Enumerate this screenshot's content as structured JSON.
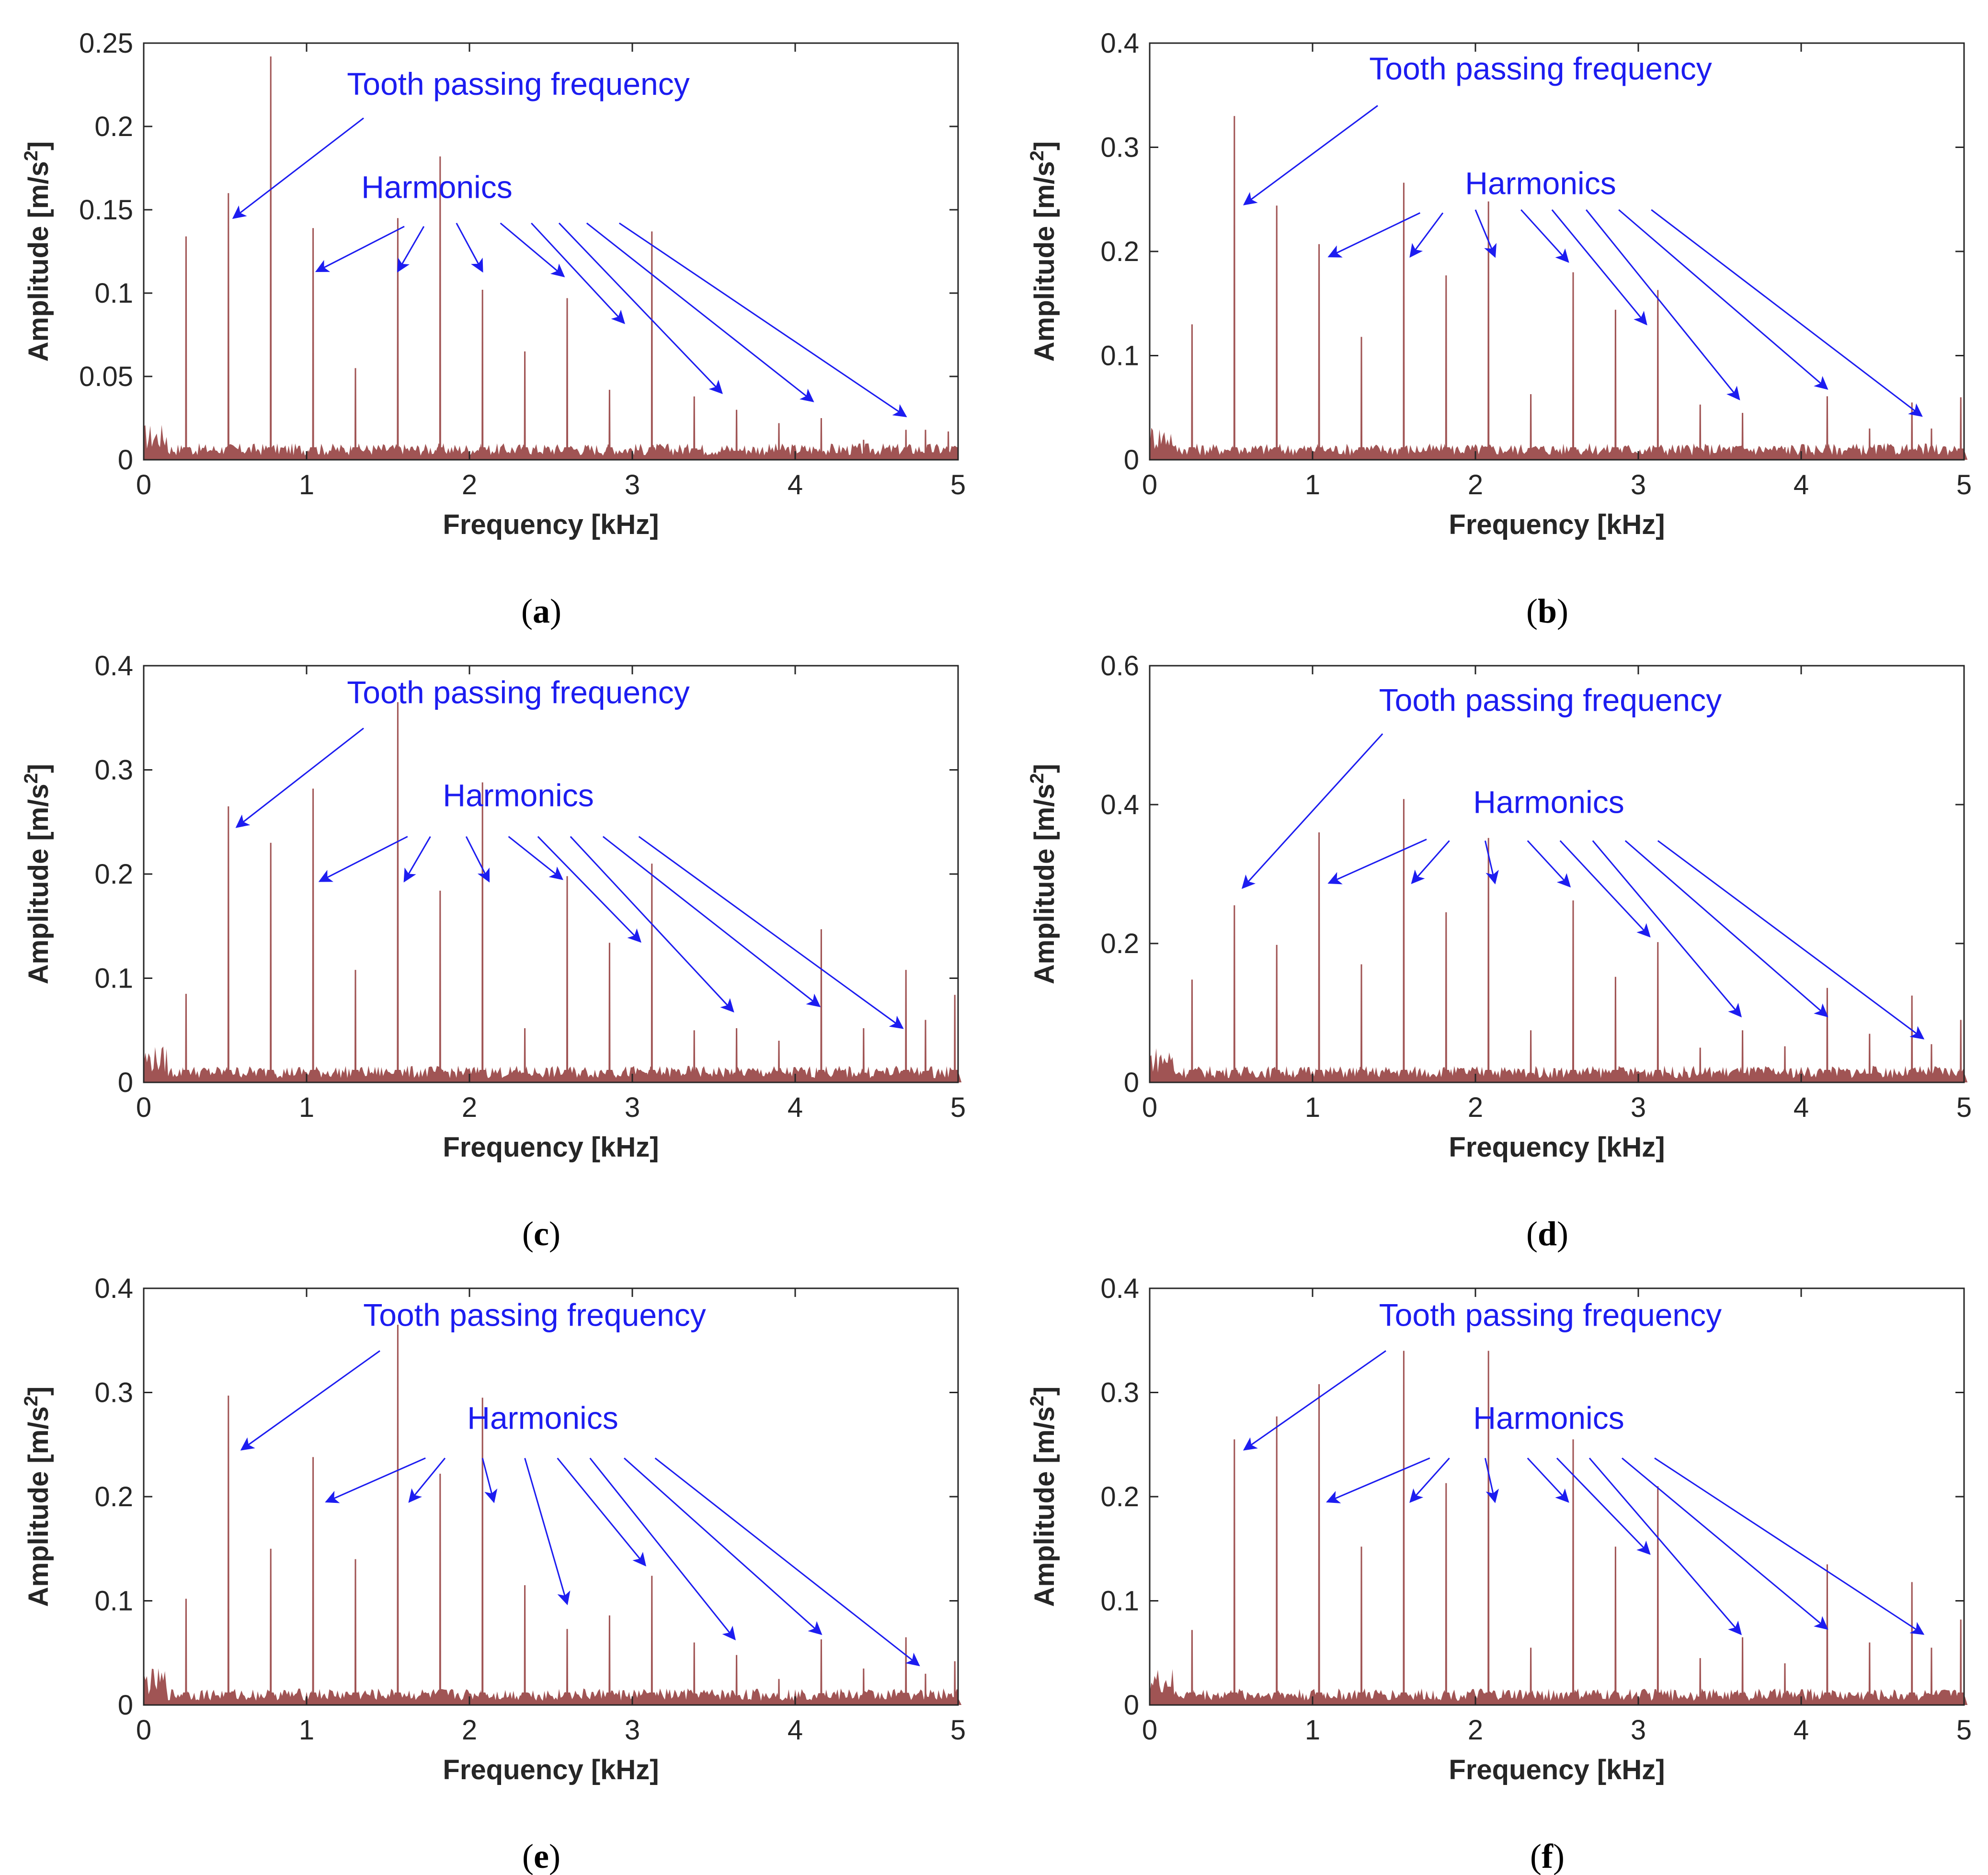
{
  "chart_data": [
    {
      "id": "a",
      "type": "bar",
      "caption": "a",
      "xlabel": "Frequency [kHz]",
      "ylabel": "Amplitude [m/s",
      "ylabel_sup": "2",
      "ylabel_tail": "]",
      "xlim": [
        0,
        5
      ],
      "ylim": [
        0,
        0.25
      ],
      "xticks": [
        "0",
        "1",
        "2",
        "3",
        "4",
        "5"
      ],
      "yticks": [
        "0",
        "0.05",
        "0.1",
        "0.15",
        "0.2",
        "0.25"
      ],
      "grid": false,
      "bar_color": "#a05454",
      "annotation_color": "#1c1cf0",
      "x": [
        0.26,
        0.52,
        0.78,
        1.04,
        1.3,
        1.56,
        1.82,
        2.08,
        2.34,
        2.6,
        2.86,
        3.12,
        3.38,
        3.64,
        3.9,
        4.16,
        4.42,
        4.68,
        4.8,
        4.94
      ],
      "values": [
        0.134,
        0.16,
        0.242,
        0.139,
        0.055,
        0.145,
        0.182,
        0.102,
        0.065,
        0.097,
        0.042,
        0.137,
        0.038,
        0.03,
        0.022,
        0.025,
        0.012,
        0.018,
        0.018,
        0.017
      ],
      "annotations": {
        "tooth": {
          "text": "Tooth passing frequency",
          "x": 2.3,
          "y": 0.219,
          "from": [
            1.35,
            0.205
          ],
          "to": [
            0.55,
            0.145
          ]
        },
        "harmonics": {
          "text": "Harmonics",
          "x": 1.8,
          "y": 0.157
        },
        "harmonic_arrows": [
          {
            "from": [
              1.6,
              0.14
            ],
            "to": [
              1.06,
              0.113
            ]
          },
          {
            "from": [
              1.72,
              0.14
            ],
            "to": [
              1.56,
              0.113
            ]
          },
          {
            "from": [
              1.92,
              0.142
            ],
            "to": [
              2.08,
              0.113
            ]
          },
          {
            "from": [
              2.19,
              0.142
            ],
            "to": [
              2.58,
              0.11
            ]
          },
          {
            "from": [
              2.38,
              0.142
            ],
            "to": [
              2.95,
              0.082
            ]
          },
          {
            "from": [
              2.55,
              0.142
            ],
            "to": [
              3.55,
              0.04
            ]
          },
          {
            "from": [
              2.72,
              0.142
            ],
            "to": [
              4.11,
              0.035
            ]
          },
          {
            "from": [
              2.92,
              0.142
            ],
            "to": [
              4.68,
              0.026
            ]
          }
        ]
      }
    },
    {
      "id": "b",
      "type": "bar",
      "caption": "b",
      "xlabel": "Frequency [kHz]",
      "ylabel": "Amplitude [m/s",
      "ylabel_sup": "2",
      "ylabel_tail": "]",
      "xlim": [
        0,
        5
      ],
      "ylim": [
        0,
        0.4
      ],
      "xticks": [
        "0",
        "1",
        "2",
        "3",
        "4",
        "5"
      ],
      "yticks": [
        "0",
        "0.1",
        "0.2",
        "0.3",
        "0.4"
      ],
      "grid": false,
      "bar_color": "#a05454",
      "annotation_color": "#1c1cf0",
      "x": [
        0.26,
        0.52,
        0.78,
        1.04,
        1.3,
        1.56,
        1.82,
        2.08,
        2.34,
        2.6,
        2.86,
        3.12,
        3.38,
        3.64,
        3.9,
        4.16,
        4.42,
        4.68,
        4.8,
        4.98
      ],
      "values": [
        0.13,
        0.33,
        0.244,
        0.207,
        0.118,
        0.266,
        0.177,
        0.248,
        0.063,
        0.18,
        0.144,
        0.163,
        0.053,
        0.045,
        0.012,
        0.061,
        0.03,
        0.055,
        0.03,
        0.06
      ],
      "annotations": {
        "tooth": {
          "text": "Tooth passing frequency",
          "x": 2.4,
          "y": 0.365,
          "from": [
            1.4,
            0.34
          ],
          "to": [
            0.58,
            0.245
          ]
        },
        "harmonics": {
          "text": "Harmonics",
          "x": 2.4,
          "y": 0.255
        },
        "harmonic_arrows": [
          {
            "from": [
              1.66,
              0.237
            ],
            "to": [
              1.1,
              0.195
            ]
          },
          {
            "from": [
              1.8,
              0.237
            ],
            "to": [
              1.6,
              0.195
            ]
          },
          {
            "from": [
              2.0,
              0.24
            ],
            "to": [
              2.12,
              0.195
            ]
          },
          {
            "from": [
              2.28,
              0.24
            ],
            "to": [
              2.57,
              0.19
            ]
          },
          {
            "from": [
              2.47,
              0.24
            ],
            "to": [
              3.05,
              0.13
            ]
          },
          {
            "from": [
              2.68,
              0.24
            ],
            "to": [
              3.62,
              0.058
            ]
          },
          {
            "from": [
              2.88,
              0.24
            ],
            "to": [
              4.16,
              0.068
            ]
          },
          {
            "from": [
              3.08,
              0.24
            ],
            "to": [
              4.74,
              0.042
            ]
          }
        ]
      }
    },
    {
      "id": "c",
      "type": "bar",
      "caption": "c",
      "xlabel": "Frequency [kHz]",
      "ylabel": "Amplitude [m/s",
      "ylabel_sup": "2",
      "ylabel_tail": "]",
      "xlim": [
        0,
        5
      ],
      "ylim": [
        0,
        0.4
      ],
      "xticks": [
        "0",
        "1",
        "2",
        "3",
        "4",
        "5"
      ],
      "yticks": [
        "0",
        "0.1",
        "0.2",
        "0.3",
        "0.4"
      ],
      "grid": false,
      "bar_color": "#a05454",
      "annotation_color": "#1c1cf0",
      "x": [
        0.26,
        0.52,
        0.78,
        1.04,
        1.3,
        1.56,
        1.82,
        2.08,
        2.34,
        2.6,
        2.86,
        3.12,
        3.38,
        3.64,
        3.9,
        4.16,
        4.42,
        4.68,
        4.8,
        4.98
      ],
      "values": [
        0.085,
        0.265,
        0.23,
        0.282,
        0.108,
        0.365,
        0.184,
        0.288,
        0.052,
        0.198,
        0.134,
        0.21,
        0.05,
        0.052,
        0.04,
        0.147,
        0.052,
        0.108,
        0.06,
        0.084
      ],
      "annotations": {
        "tooth": {
          "text": "Tooth passing frequency",
          "x": 2.3,
          "y": 0.364,
          "from": [
            1.35,
            0.34
          ],
          "to": [
            0.57,
            0.245
          ]
        },
        "harmonics": {
          "text": "Harmonics",
          "x": 2.3,
          "y": 0.265
        },
        "harmonic_arrows": [
          {
            "from": [
              1.62,
              0.236
            ],
            "to": [
              1.08,
              0.193
            ]
          },
          {
            "from": [
              1.76,
              0.236
            ],
            "to": [
              1.6,
              0.193
            ]
          },
          {
            "from": [
              1.98,
              0.236
            ],
            "to": [
              2.12,
              0.193
            ]
          },
          {
            "from": [
              2.24,
              0.236
            ],
            "to": [
              2.57,
              0.195
            ]
          },
          {
            "from": [
              2.42,
              0.236
            ],
            "to": [
              3.05,
              0.135
            ]
          },
          {
            "from": [
              2.62,
              0.236
            ],
            "to": [
              3.62,
              0.068
            ]
          },
          {
            "from": [
              2.82,
              0.236
            ],
            "to": [
              4.15,
              0.073
            ]
          },
          {
            "from": [
              3.04,
              0.236
            ],
            "to": [
              4.66,
              0.052
            ]
          }
        ]
      }
    },
    {
      "id": "d",
      "type": "bar",
      "caption": "d",
      "xlabel": "Frequency [kHz]",
      "ylabel": "Amplitude [m/s",
      "ylabel_sup": "2",
      "ylabel_tail": "]",
      "xlim": [
        0,
        5
      ],
      "ylim": [
        0,
        0.6
      ],
      "xticks": [
        "0",
        "1",
        "2",
        "3",
        "4",
        "5"
      ],
      "yticks": [
        "0",
        "0.2",
        "0.4",
        "0.6"
      ],
      "grid": false,
      "bar_color": "#a05454",
      "annotation_color": "#1c1cf0",
      "x": [
        0.26,
        0.52,
        0.78,
        1.04,
        1.3,
        1.56,
        1.82,
        2.08,
        2.34,
        2.6,
        2.86,
        3.12,
        3.38,
        3.64,
        3.9,
        4.16,
        4.42,
        4.68,
        4.8,
        4.98
      ],
      "values": [
        0.148,
        0.255,
        0.198,
        0.36,
        0.17,
        0.408,
        0.245,
        0.352,
        0.075,
        0.262,
        0.152,
        0.202,
        0.05,
        0.075,
        0.052,
        0.136,
        0.07,
        0.125,
        0.055,
        0.09
      ],
      "annotations": {
        "tooth": {
          "text": "Tooth passing frequency",
          "x": 2.46,
          "y": 0.535,
          "from": [
            1.43,
            0.502
          ],
          "to": [
            0.57,
            0.28
          ]
        },
        "harmonics": {
          "text": "Harmonics",
          "x": 2.45,
          "y": 0.388
        },
        "harmonic_arrows": [
          {
            "from": [
              1.7,
              0.35
            ],
            "to": [
              1.1,
              0.287
            ]
          },
          {
            "from": [
              1.84,
              0.348
            ],
            "to": [
              1.61,
              0.287
            ]
          },
          {
            "from": [
              2.06,
              0.348
            ],
            "to": [
              2.12,
              0.287
            ]
          },
          {
            "from": [
              2.32,
              0.348
            ],
            "to": [
              2.58,
              0.282
            ]
          },
          {
            "from": [
              2.52,
              0.348
            ],
            "to": [
              3.07,
              0.21
            ]
          },
          {
            "from": [
              2.72,
              0.348
            ],
            "to": [
              3.63,
              0.095
            ]
          },
          {
            "from": [
              2.92,
              0.348
            ],
            "to": [
              4.16,
              0.095
            ]
          },
          {
            "from": [
              3.12,
              0.348
            ],
            "to": [
              4.75,
              0.063
            ]
          }
        ]
      }
    },
    {
      "id": "e",
      "type": "bar",
      "caption": "e",
      "xlabel": "Frequency [kHz]",
      "ylabel": "Amplitude [m/s",
      "ylabel_sup": "2",
      "ylabel_tail": "]",
      "xlim": [
        0,
        5
      ],
      "ylim": [
        0,
        0.4
      ],
      "xticks": [
        "0",
        "1",
        "2",
        "3",
        "4",
        "5"
      ],
      "yticks": [
        "0",
        "0.1",
        "0.2",
        "0.3",
        "0.4"
      ],
      "grid": false,
      "bar_color": "#a05454",
      "annotation_color": "#1c1cf0",
      "x": [
        0.26,
        0.52,
        0.78,
        1.04,
        1.3,
        1.56,
        1.82,
        2.08,
        2.34,
        2.6,
        2.86,
        3.12,
        3.38,
        3.64,
        3.9,
        4.16,
        4.42,
        4.68,
        4.8,
        4.98
      ],
      "values": [
        0.102,
        0.297,
        0.15,
        0.238,
        0.14,
        0.365,
        0.222,
        0.295,
        0.115,
        0.073,
        0.086,
        0.124,
        0.06,
        0.048,
        0.025,
        0.063,
        0.035,
        0.065,
        0.03,
        0.042
      ],
      "annotations": {
        "tooth": {
          "text": "Tooth passing frequency",
          "x": 2.4,
          "y": 0.364,
          "from": [
            1.45,
            0.34
          ],
          "to": [
            0.6,
            0.245
          ]
        },
        "harmonics": {
          "text": "Harmonics",
          "x": 2.45,
          "y": 0.265
        },
        "harmonic_arrows": [
          {
            "from": [
              1.73,
              0.237
            ],
            "to": [
              1.12,
              0.195
            ]
          },
          {
            "from": [
              1.85,
              0.237
            ],
            "to": [
              1.63,
              0.195
            ]
          },
          {
            "from": [
              2.08,
              0.237
            ],
            "to": [
              2.15,
              0.195
            ]
          },
          {
            "from": [
              2.34,
              0.237
            ],
            "to": [
              2.6,
              0.097
            ]
          },
          {
            "from": [
              2.54,
              0.237
            ],
            "to": [
              3.08,
              0.134
            ]
          },
          {
            "from": [
              2.74,
              0.237
            ],
            "to": [
              3.63,
              0.063
            ]
          },
          {
            "from": [
              2.95,
              0.237
            ],
            "to": [
              4.16,
              0.068
            ]
          },
          {
            "from": [
              3.14,
              0.237
            ],
            "to": [
              4.76,
              0.038
            ]
          }
        ]
      }
    },
    {
      "id": "f",
      "type": "bar",
      "caption": "f",
      "xlabel": "Frequency [kHz]",
      "ylabel": "Amplitude [m/s",
      "ylabel_sup": "2",
      "ylabel_tail": "]",
      "xlim": [
        0,
        5
      ],
      "ylim": [
        0,
        0.4
      ],
      "xticks": [
        "0",
        "1",
        "2",
        "3",
        "4",
        "5"
      ],
      "yticks": [
        "0",
        "0.1",
        "0.2",
        "0.3",
        "0.4"
      ],
      "grid": false,
      "bar_color": "#a05454",
      "annotation_color": "#1c1cf0",
      "x": [
        0.26,
        0.52,
        0.78,
        1.04,
        1.3,
        1.56,
        1.82,
        2.08,
        2.34,
        2.6,
        2.86,
        3.12,
        3.38,
        3.64,
        3.9,
        4.16,
        4.42,
        4.68,
        4.8,
        4.98
      ],
      "values": [
        0.072,
        0.255,
        0.277,
        0.308,
        0.152,
        0.34,
        0.213,
        0.34,
        0.055,
        0.255,
        0.152,
        0.21,
        0.045,
        0.065,
        0.04,
        0.135,
        0.06,
        0.118,
        0.055,
        0.082
      ],
      "annotations": {
        "tooth": {
          "text": "Tooth passing frequency",
          "x": 2.46,
          "y": 0.364,
          "from": [
            1.45,
            0.34
          ],
          "to": [
            0.58,
            0.245
          ]
        },
        "harmonics": {
          "text": "Harmonics",
          "x": 2.45,
          "y": 0.265
        },
        "harmonic_arrows": [
          {
            "from": [
              1.72,
              0.237
            ],
            "to": [
              1.09,
              0.195
            ]
          },
          {
            "from": [
              1.84,
              0.237
            ],
            "to": [
              1.6,
              0.195
            ]
          },
          {
            "from": [
              2.06,
              0.237
            ],
            "to": [
              2.12,
              0.195
            ]
          },
          {
            "from": [
              2.32,
              0.237
            ],
            "to": [
              2.57,
              0.195
            ]
          },
          {
            "from": [
              2.5,
              0.237
            ],
            "to": [
              3.07,
              0.145
            ]
          },
          {
            "from": [
              2.7,
              0.237
            ],
            "to": [
              3.63,
              0.068
            ]
          },
          {
            "from": [
              2.9,
              0.237
            ],
            "to": [
              4.16,
              0.073
            ]
          },
          {
            "from": [
              3.1,
              0.237
            ],
            "to": [
              4.75,
              0.068
            ]
          }
        ]
      }
    }
  ]
}
